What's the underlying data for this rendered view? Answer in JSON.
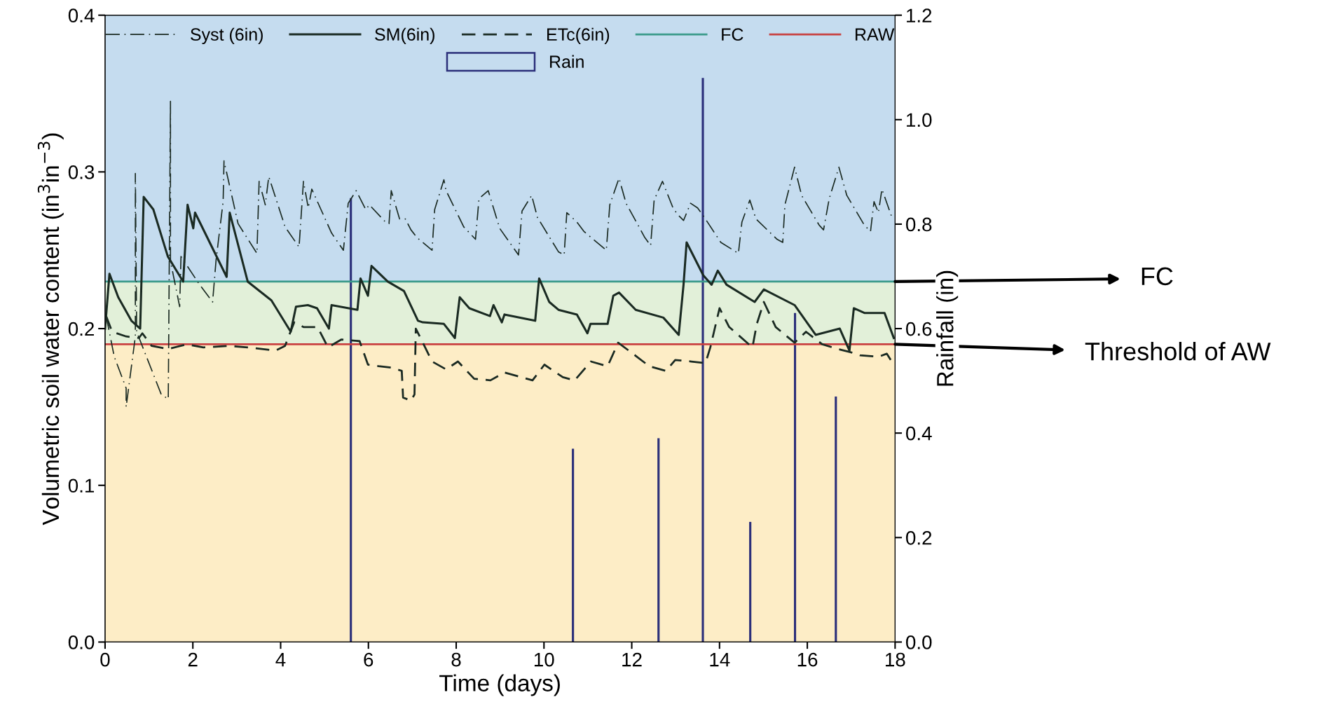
{
  "chart_data": {
    "type": "line",
    "xlabel": "Time (days)",
    "ylabel": "Volumetric soil water content (in$^{3}$in$^{−3}$)",
    "y2label": "Rainfall (in)",
    "xlim": [
      0,
      18
    ],
    "xticks": [
      0,
      2,
      4,
      6,
      8,
      10,
      12,
      14,
      16,
      18
    ],
    "ylim": [
      0,
      0.4
    ],
    "yticks": [
      {
        "value": 0,
        "label": "0.0"
      },
      0.1,
      0.2,
      0.3,
      0.4
    ],
    "y2lim": [
      0,
      1.2
    ],
    "y2ticks": [
      {
        "value": 0,
        "label": "0.0"
      },
      0.2,
      0.4,
      0.6,
      0.8,
      {
        "value": 1,
        "label": "1.0"
      },
      1.2
    ],
    "legend": "top",
    "grid": false,
    "series": [
      {
        "name": "Syst (6in)",
        "line_style": "dashdot",
        "color": "#1a2a22",
        "x": [
          0.025,
          0.21,
          0.48,
          0.48,
          0.69,
          0.69,
          0.72,
          1.28,
          1.44,
          1.49,
          1.49,
          1.7,
          1.73,
          2.13,
          2.45,
          2.53,
          2.69,
          2.71,
          3.03,
          3.46,
          3.51,
          3.65,
          3.73,
          4.1,
          4.42,
          4.52,
          4.63,
          4.71,
          5.16,
          5.43,
          5.54,
          5.72,
          5.94,
          6.02,
          6.39,
          6.47,
          6.52,
          6.71,
          6.84,
          6.97,
          7.11,
          7.45,
          7.51,
          7.72,
          7.77,
          8.17,
          8.44,
          8.52,
          8.73,
          8.99,
          9.42,
          9.5,
          9.72,
          9.85,
          10.33,
          10.46,
          10.52,
          10.75,
          10.91,
          11.42,
          11.5,
          11.71,
          11.87,
          12.3,
          12.43,
          12.51,
          12.7,
          12.94,
          13.04,
          13.18,
          13.34,
          13.5,
          13.63,
          14.03,
          14.43,
          14.51,
          14.69,
          14.83,
          15.31,
          15.44,
          15.49,
          15.71,
          15.87,
          16.27,
          16.37,
          16.5,
          16.72,
          16.9,
          17.3,
          17.44,
          17.52,
          17.62,
          17.7,
          17.94
        ],
        "values": [
          0.208,
          0.182,
          0.162,
          0.15,
          0.195,
          0.299,
          0.198,
          0.158,
          0.155,
          0.345,
          0.243,
          0.214,
          0.246,
          0.229,
          0.217,
          0.244,
          0.281,
          0.307,
          0.267,
          0.248,
          0.294,
          0.279,
          0.297,
          0.265,
          0.252,
          0.294,
          0.277,
          0.289,
          0.261,
          0.25,
          0.28,
          0.288,
          0.276,
          0.279,
          0.268,
          0.267,
          0.288,
          0.27,
          0.27,
          0.263,
          0.258,
          0.25,
          0.276,
          0.295,
          0.288,
          0.265,
          0.257,
          0.283,
          0.288,
          0.264,
          0.247,
          0.275,
          0.285,
          0.271,
          0.249,
          0.247,
          0.274,
          0.268,
          0.262,
          0.25,
          0.279,
          0.296,
          0.28,
          0.258,
          0.253,
          0.282,
          0.294,
          0.277,
          0.273,
          0.269,
          0.28,
          0.277,
          0.272,
          0.255,
          0.248,
          0.268,
          0.282,
          0.27,
          0.257,
          0.255,
          0.279,
          0.303,
          0.285,
          0.266,
          0.263,
          0.283,
          0.303,
          0.285,
          0.266,
          0.262,
          0.281,
          0.274,
          0.289,
          0.27
        ]
      },
      {
        "name": "SM(6in)",
        "line_style": "solid",
        "color": "#1a2a22",
        "x": [
          0,
          0.1,
          0.3,
          0.6,
          0.8,
          0.88,
          1.1,
          1.43,
          1.78,
          1.88,
          2.01,
          2.05,
          2.77,
          2.84,
          3.25,
          3.79,
          4.23,
          4.35,
          4.62,
          4.83,
          5.1,
          5.16,
          5.75,
          5.82,
          5.99,
          6.07,
          6.44,
          6.81,
          7.13,
          7.24,
          7.72,
          7.97,
          8.08,
          8.3,
          8.77,
          8.85,
          9.04,
          9.1,
          9.8,
          9.89,
          10.12,
          10.33,
          10.75,
          10.99,
          11.06,
          11.45,
          11.58,
          11.71,
          12.09,
          12.72,
          13.07,
          13.18,
          13.25,
          13.63,
          13.82,
          13.96,
          14.16,
          14.8,
          15.01,
          15.71,
          16.19,
          16.74,
          16.96,
          17.06,
          17.3,
          17.76,
          17.97
        ],
        "values": [
          0.2,
          0.235,
          0.22,
          0.205,
          0.2,
          0.284,
          0.276,
          0.246,
          0.23,
          0.279,
          0.264,
          0.274,
          0.233,
          0.274,
          0.23,
          0.218,
          0.198,
          0.214,
          0.215,
          0.213,
          0.2,
          0.215,
          0.212,
          0.232,
          0.221,
          0.24,
          0.23,
          0.224,
          0.205,
          0.204,
          0.203,
          0.194,
          0.22,
          0.213,
          0.208,
          0.215,
          0.204,
          0.209,
          0.205,
          0.232,
          0.217,
          0.212,
          0.209,
          0.197,
          0.203,
          0.203,
          0.221,
          0.223,
          0.212,
          0.207,
          0.196,
          0.228,
          0.255,
          0.234,
          0.228,
          0.237,
          0.228,
          0.217,
          0.225,
          0.215,
          0.196,
          0.2,
          0.186,
          0.213,
          0.21,
          0.21,
          0.194
        ]
      },
      {
        "name": "ETc(6in)",
        "line_style": "dashed",
        "color": "#1a2a22",
        "x": [
          0.025,
          0.16,
          0.48,
          0.77,
          0.85,
          1.06,
          1.44,
          1.86,
          2.24,
          2.82,
          3.25,
          3.89,
          4.1,
          4.31,
          4.52,
          4.84,
          5.08,
          5.38,
          5.8,
          5.99,
          6.23,
          6.55,
          6.65,
          6.76,
          6.79,
          6.97,
          7.05,
          7.08,
          7.24,
          7.45,
          7.77,
          8.04,
          8.41,
          8.78,
          9.1,
          9.74,
          10.01,
          10.43,
          10.7,
          11.07,
          11.45,
          11.69,
          11.93,
          12.4,
          12.78,
          12.99,
          13.36,
          13.68,
          13.79,
          14.0,
          14.22,
          14.75,
          14.85,
          15.01,
          15.28,
          15.71,
          15.97,
          16.34,
          16.69,
          16.98,
          17.2,
          17.62,
          17.81,
          17.97
        ],
        "values": [
          0.208,
          0.198,
          0.195,
          0.194,
          0.197,
          0.189,
          0.187,
          0.19,
          0.188,
          0.189,
          0.188,
          0.186,
          0.189,
          0.204,
          0.201,
          0.201,
          0.188,
          0.193,
          0.192,
          0.177,
          0.176,
          0.175,
          0.174,
          0.173,
          0.156,
          0.154,
          0.158,
          0.2,
          0.191,
          0.179,
          0.174,
          0.179,
          0.168,
          0.167,
          0.172,
          0.167,
          0.177,
          0.169,
          0.167,
          0.179,
          0.176,
          0.191,
          0.186,
          0.176,
          0.173,
          0.18,
          0.179,
          0.178,
          0.188,
          0.213,
          0.201,
          0.188,
          0.203,
          0.217,
          0.201,
          0.191,
          0.198,
          0.19,
          0.187,
          0.185,
          0.183,
          0.182,
          0.184,
          0.177
        ]
      },
      {
        "name": "Rain",
        "type": "bar",
        "axis": "y2",
        "color": "#2b2f7a",
        "x": [
          5.6,
          10.66,
          12.61,
          13.62,
          14.7,
          15.72,
          16.65
        ],
        "values": [
          0.85,
          0.37,
          0.39,
          1.08,
          0.23,
          0.63,
          0.47
        ]
      }
    ],
    "ref_lines": [
      {
        "axis": "y",
        "value": 0.23,
        "label": "FC",
        "color": "#3a9a8a"
      },
      {
        "axis": "y",
        "value": 0.19,
        "label": "RAW",
        "color": "#c84040"
      }
    ],
    "bands": [
      {
        "axis": "y",
        "from": 0.23,
        "to": 0.4,
        "color": "#c5dcef"
      },
      {
        "axis": "y",
        "from": 0.19,
        "to": 0.23,
        "color": "#e2f0d9"
      },
      {
        "axis": "y",
        "from": 0,
        "to": 0.19,
        "color": "#fdedc6"
      }
    ],
    "annotations": [
      {
        "text": "FC",
        "x": 18,
        "y": 0.23
      },
      {
        "text": "Threshold of AW",
        "x": 18,
        "y": 0.19
      }
    ]
  }
}
